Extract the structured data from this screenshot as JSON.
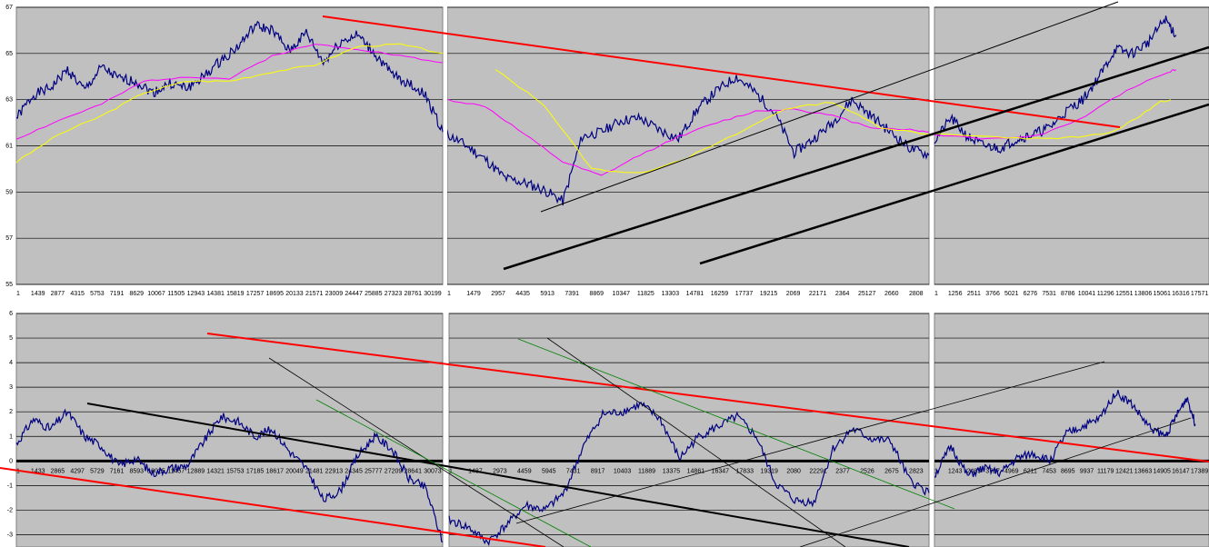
{
  "colors": {
    "plot_bg": "#c0c0c0",
    "price": "#000080",
    "ma_fast": "#ffff00",
    "ma_slow": "#ff00ff",
    "trend_red": "#ff0000",
    "trend_black": "#000000",
    "trend_green": "#008000",
    "grid": "#000000"
  },
  "chart_data": [
    {
      "type": "line",
      "panel": "top-left",
      "ylim": [
        55,
        67
      ],
      "yticks": [
        "55",
        "57",
        "59",
        "61",
        "63",
        "65",
        "67"
      ],
      "xticks": [
        "1",
        "1439",
        "2877",
        "4315",
        "5753",
        "7191",
        "8629",
        "10067",
        "11505",
        "12943",
        "14381",
        "15819",
        "17257",
        "18695",
        "20133",
        "21571",
        "23009",
        "24447",
        "25885",
        "27323",
        "28761",
        "30199"
      ],
      "series": [
        {
          "role": "price",
          "x": [
            0,
            0.04,
            0.08,
            0.12,
            0.16,
            0.2,
            0.24,
            0.28,
            0.32,
            0.36,
            0.4,
            0.44,
            0.48,
            0.52,
            0.56,
            0.6,
            0.64,
            0.68,
            0.72,
            0.76,
            0.8,
            0.84,
            0.88,
            0.92,
            0.96,
            1.0
          ],
          "values": [
            62.2,
            63.2,
            63.5,
            64.3,
            63.4,
            64.4,
            63.9,
            63.8,
            63.3,
            63.7,
            63.5,
            64.0,
            64.7,
            65.3,
            66.2,
            66.0,
            65.1,
            65.9,
            64.6,
            65.5,
            65.8,
            65.0,
            64.1,
            63.7,
            63.2,
            61.6
          ]
        },
        {
          "role": "ma_slow",
          "x": [
            0,
            0.1,
            0.2,
            0.3,
            0.4,
            0.5,
            0.6,
            0.7,
            0.8,
            0.9,
            1.0
          ],
          "values": [
            61.3,
            62.1,
            62.8,
            63.8,
            64.0,
            63.9,
            64.9,
            65.4,
            65.2,
            64.9,
            64.6
          ]
        },
        {
          "role": "ma_fast",
          "x": [
            0,
            0.1,
            0.2,
            0.3,
            0.4,
            0.5,
            0.6,
            0.7,
            0.8,
            0.9,
            1.0
          ],
          "values": [
            60.3,
            61.5,
            62.3,
            63.3,
            63.8,
            63.8,
            64.2,
            64.5,
            65.3,
            65.4,
            65.0
          ]
        }
      ]
    },
    {
      "type": "line",
      "panel": "top-middle",
      "ylim": [
        55,
        67
      ],
      "yticks": [],
      "xticks": [
        "1",
        "1479",
        "2957",
        "4435",
        "5913",
        "7391",
        "8869",
        "10347",
        "11825",
        "13303",
        "14781",
        "16259",
        "17737",
        "19215",
        "2069",
        "22171",
        "2364",
        "25127",
        "2660",
        "2808"
      ],
      "series": [
        {
          "role": "price",
          "x": [
            0,
            0.04,
            0.08,
            0.12,
            0.16,
            0.2,
            0.24,
            0.28,
            0.32,
            0.36,
            0.4,
            0.44,
            0.48,
            0.52,
            0.56,
            0.6,
            0.64,
            0.68,
            0.72,
            0.76,
            0.8,
            0.84,
            0.88,
            0.92,
            0.96,
            1.0
          ],
          "values": [
            61.5,
            61.0,
            60.4,
            59.6,
            59.4,
            59.1,
            58.6,
            61.4,
            61.6,
            62.1,
            62.2,
            61.7,
            61.3,
            62.6,
            63.4,
            64.0,
            63.3,
            62.4,
            60.7,
            61.3,
            62.0,
            63.0,
            62.3,
            61.6,
            60.9,
            60.6
          ]
        },
        {
          "role": "ma_slow",
          "x": [
            0,
            0.08,
            0.16,
            0.24,
            0.32,
            0.4,
            0.48,
            0.56,
            0.64,
            0.72,
            0.8,
            0.88,
            0.96,
            1.0
          ],
          "values": [
            63.0,
            62.7,
            61.5,
            60.3,
            59.7,
            60.6,
            61.4,
            62.0,
            62.5,
            62.6,
            62.3,
            61.8,
            61.7,
            61.6
          ]
        },
        {
          "role": "ma_fast",
          "x": [
            0.1,
            0.2,
            0.3,
            0.4,
            0.5,
            0.6,
            0.7,
            0.8,
            0.9,
            1.0
          ],
          "values": [
            64.3,
            62.8,
            60.0,
            59.8,
            60.5,
            61.5,
            62.6,
            62.9,
            61.8,
            61.5
          ]
        }
      ]
    },
    {
      "type": "line",
      "panel": "top-right",
      "ylim": [
        55,
        67
      ],
      "yticks": [],
      "xticks": [
        "1",
        "1256",
        "2511",
        "3766",
        "5021",
        "6276",
        "7531",
        "8786",
        "10041",
        "11296",
        "12551",
        "13806",
        "15061",
        "16316",
        "17571"
      ],
      "series": [
        {
          "role": "price",
          "x": [
            0,
            0.06,
            0.12,
            0.18,
            0.24,
            0.3,
            0.36,
            0.42,
            0.48,
            0.54,
            0.6,
            0.66,
            0.72,
            0.78,
            0.84,
            0.88
          ],
          "values": [
            61.2,
            62.2,
            61.4,
            61.0,
            60.9,
            61.3,
            61.5,
            61.8,
            62.5,
            63.0,
            64.0,
            65.2,
            65.0,
            65.5,
            66.5,
            65.8
          ]
        },
        {
          "role": "ma_slow",
          "x": [
            0,
            0.2,
            0.4,
            0.55,
            0.7,
            0.85,
            0.88
          ],
          "values": [
            61.5,
            61.3,
            61.5,
            62.3,
            63.4,
            64.2,
            64.3
          ]
        },
        {
          "role": "ma_fast",
          "x": [
            0,
            0.2,
            0.4,
            0.55,
            0.65,
            0.75,
            0.82,
            0.86
          ],
          "values": [
            61.5,
            61.4,
            61.3,
            61.4,
            61.6,
            62.3,
            62.9,
            63.0
          ]
        }
      ]
    },
    {
      "type": "line",
      "panel": "bottom-left",
      "ylim": [
        -3.5,
        6
      ],
      "yticks": [
        "-3",
        "-2",
        "-1",
        "0",
        "1",
        "2",
        "3",
        "4",
        "5",
        "6"
      ],
      "xticks": [
        "1",
        "1433",
        "2865",
        "4297",
        "5729",
        "7161",
        "8593",
        "10025",
        "11457",
        "12889",
        "14321",
        "15753",
        "17185",
        "18617",
        "20049",
        "21481",
        "22913",
        "24345",
        "25777",
        "27209",
        "28641",
        "30073"
      ],
      "series": [
        {
          "role": "price",
          "x": [
            0,
            0.04,
            0.08,
            0.12,
            0.16,
            0.2,
            0.24,
            0.28,
            0.32,
            0.36,
            0.4,
            0.44,
            0.48,
            0.52,
            0.56,
            0.6,
            0.64,
            0.68,
            0.72,
            0.76,
            0.8,
            0.84,
            0.88,
            0.92,
            0.96,
            1.0
          ],
          "values": [
            0.7,
            1.7,
            1.3,
            2.0,
            1.0,
            0.6,
            -0.2,
            0.1,
            -0.5,
            -0.3,
            -0.2,
            0.8,
            1.8,
            1.6,
            1.0,
            1.3,
            0.4,
            -0.3,
            -1.6,
            -1.2,
            0.2,
            1.0,
            0.5,
            -0.7,
            -1.1,
            -3.3
          ]
        }
      ]
    },
    {
      "type": "line",
      "panel": "bottom-middle",
      "ylim": [
        -3.5,
        6
      ],
      "yticks": [],
      "xticks": [
        "1",
        "1487",
        "2973",
        "4459",
        "5945",
        "7431",
        "8917",
        "10403",
        "11889",
        "13375",
        "14861",
        "16347",
        "17833",
        "19319",
        "2080",
        "22291",
        "2377",
        "2526",
        "2675",
        "2823"
      ],
      "series": [
        {
          "role": "price",
          "x": [
            0,
            0.04,
            0.08,
            0.12,
            0.16,
            0.2,
            0.24,
            0.28,
            0.32,
            0.36,
            0.4,
            0.44,
            0.48,
            0.52,
            0.56,
            0.6,
            0.64,
            0.68,
            0.72,
            0.76,
            0.8,
            0.84,
            0.88,
            0.92,
            0.96,
            1.0
          ],
          "values": [
            -2.4,
            -2.7,
            -3.3,
            -2.6,
            -1.8,
            -2.0,
            -1.3,
            0.6,
            1.9,
            2.0,
            2.3,
            1.7,
            0.1,
            1.0,
            1.4,
            1.8,
            1.0,
            -0.9,
            -1.6,
            -1.7,
            0.5,
            1.3,
            0.9,
            0.8,
            -0.8,
            -1.3
          ]
        }
      ]
    },
    {
      "type": "line",
      "panel": "bottom-right",
      "ylim": [
        -3.5,
        6
      ],
      "yticks": [],
      "xticks": [
        "1",
        "1243",
        "2485",
        "3727",
        "4969",
        "6211",
        "7453",
        "8695",
        "9937",
        "11179",
        "12421",
        "13663",
        "14905",
        "16147",
        "17389"
      ],
      "series": [
        {
          "role": "price",
          "x": [
            0,
            0.06,
            0.12,
            0.18,
            0.24,
            0.3,
            0.36,
            0.42,
            0.48,
            0.54,
            0.6,
            0.66,
            0.72,
            0.78,
            0.84,
            0.88,
            0.92,
            0.95
          ],
          "values": [
            -0.6,
            0.6,
            -0.6,
            -0.3,
            -0.5,
            0.1,
            0.3,
            0.0,
            1.1,
            1.4,
            1.7,
            2.8,
            2.3,
            1.4,
            1.0,
            1.8,
            2.6,
            1.5
          ]
        }
      ]
    }
  ]
}
